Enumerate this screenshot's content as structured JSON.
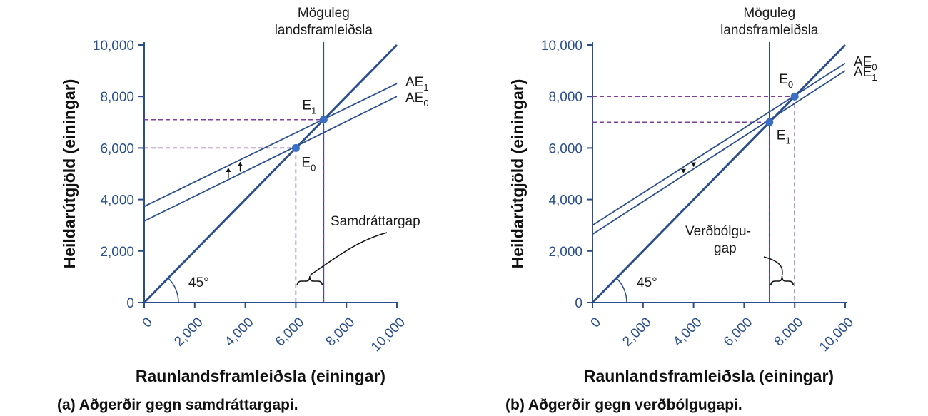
{
  "chart_data": [
    {
      "type": "line",
      "caption": "(a) Aðgerðir gegn samdráttargapi.",
      "xlabel": "Raunlandsframleiðsla (einingar)",
      "ylabel": "Heildarútgjöld (einingar)",
      "xlim": [
        0,
        10000
      ],
      "ylim": [
        0,
        10000
      ],
      "xticks": [
        "0",
        "2,000",
        "4,000",
        "6,000",
        "8,000",
        "10,000"
      ],
      "yticks": [
        "0",
        "2,000",
        "4,000",
        "6,000",
        "8,000",
        "10,000"
      ],
      "series": [
        {
          "base": "AE",
          "sub": "1",
          "x": [
            0,
            10000
          ],
          "y": [
            3730,
            8500
          ]
        },
        {
          "base": "AE",
          "sub": "0",
          "x": [
            0,
            10000
          ],
          "y": [
            3160,
            8000
          ]
        },
        {
          "x": [
            0,
            10000
          ],
          "y": [
            0,
            10000
          ]
        }
      ],
      "potential_gdp": {
        "x": 7100,
        "label_lines": [
          "Möguleg",
          "landsframleiðsla"
        ]
      },
      "points": [
        {
          "base": "E",
          "sub": "1",
          "x": 7100,
          "y": 7100
        },
        {
          "base": "E",
          "sub": "0",
          "x": 6000,
          "y": 6000
        }
      ],
      "angle_label": "45°",
      "gap_label_lines": [
        "Samdráttargap"
      ]
    },
    {
      "type": "line",
      "caption": "(b) Aðgerðir gegn verðbólgugapi.",
      "xlabel": "Raunlandsframleiðsla (einingar)",
      "ylabel": "Heildarútgjöld (einingar)",
      "xlim": [
        0,
        10000
      ],
      "ylim": [
        0,
        10000
      ],
      "xticks": [
        "0",
        "2,000",
        "4,000",
        "6,000",
        "8,000",
        "10,000"
      ],
      "yticks": [
        "0",
        "2,000",
        "4,000",
        "6,000",
        "8,000",
        "10,000"
      ],
      "series": [
        {
          "base": "AE",
          "sub": "0",
          "x": [
            0,
            10000
          ],
          "y": [
            3000,
            9290
          ]
        },
        {
          "base": "AE",
          "sub": "1",
          "x": [
            0,
            10000
          ],
          "y": [
            2650,
            9000
          ]
        },
        {
          "x": [
            0,
            10000
          ],
          "y": [
            0,
            10000
          ]
        }
      ],
      "potential_gdp": {
        "x": 7000,
        "label_lines": [
          "Möguleg",
          "landsframleiðsla"
        ]
      },
      "points": [
        {
          "base": "E",
          "sub": "0",
          "x": 8000,
          "y": 8000
        },
        {
          "base": "E",
          "sub": "1",
          "x": 7000,
          "y": 7000
        }
      ],
      "angle_label": "45°",
      "gap_label_lines": [
        "Verðbólgu-",
        "gap"
      ]
    }
  ]
}
